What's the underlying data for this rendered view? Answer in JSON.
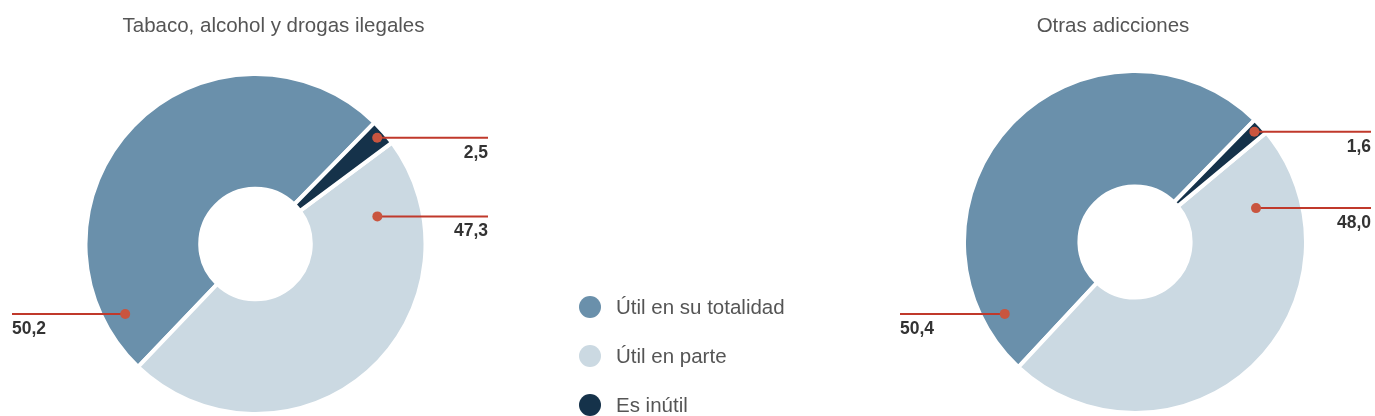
{
  "chart_data": [
    {
      "type": "donut",
      "title": "Tabaco, alcohol y drogas ilegales",
      "categories": [
        "Útil en su totalidad",
        "Útil en parte",
        "Es inútil"
      ],
      "values": [
        50.2,
        47.3,
        2.5
      ],
      "colors": [
        "#6a90ab",
        "#cbd9e2",
        "#15324a"
      ],
      "value_labels": [
        "50,2",
        "47,3",
        "2,5"
      ],
      "legend": "right"
    },
    {
      "type": "donut",
      "title": "Otras adicciones",
      "categories": [
        null,
        null,
        null
      ],
      "values": [
        50.4,
        48.0,
        1.6
      ],
      "colors": [
        "#6a90ab",
        "#cbd9e2",
        "#15324a"
      ],
      "value_labels": [
        "50,4",
        "48,0",
        "1,6"
      ]
    }
  ]
}
